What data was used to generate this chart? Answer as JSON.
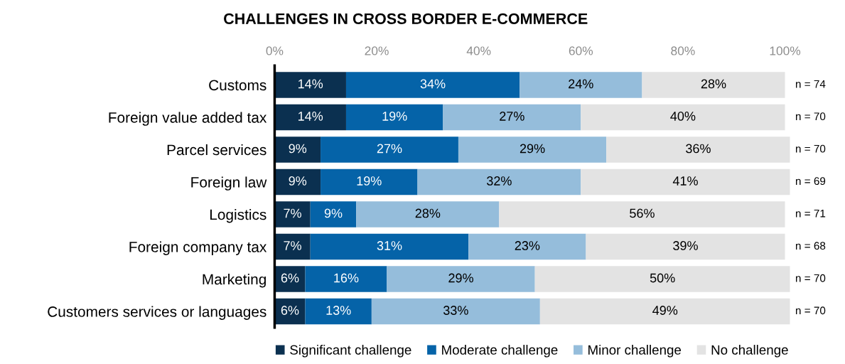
{
  "chart_data": {
    "type": "bar",
    "orientation": "horizontal",
    "stacked": true,
    "title": "CHALLENGES IN CROSS BORDER E-COMMERCE",
    "categories": [
      "Customs",
      "Foreign value added tax",
      "Parcel services",
      "Foreign law",
      "Logistics",
      "Foreign company tax",
      "Marketing",
      "Customers services or languages"
    ],
    "series": [
      {
        "name": "Significant challenge",
        "color": "#0b3050",
        "values": [
          14,
          14,
          9,
          9,
          7,
          7,
          6,
          6
        ],
        "value_labels": [
          "14%",
          "14%",
          "9%",
          "9%",
          "7%",
          "7%",
          "6%",
          "6%"
        ]
      },
      {
        "name": "Moderate challenge",
        "color": "#0563a8",
        "values": [
          34,
          19,
          27,
          19,
          9,
          31,
          16,
          13
        ],
        "value_labels": [
          "34%",
          "19%",
          "27%",
          "19%",
          "9%",
          "31%",
          "16%",
          "13%"
        ]
      },
      {
        "name": "Minor challenge",
        "color": "#95bddb",
        "values": [
          24,
          27,
          29,
          32,
          28,
          23,
          29,
          33
        ],
        "value_labels": [
          "24%",
          "27%",
          "29%",
          "32%",
          "28%",
          "23%",
          "29%",
          "33%"
        ]
      },
      {
        "name": "No challenge",
        "color": "#e3e3e3",
        "values": [
          28,
          40,
          36,
          41,
          56,
          39,
          50,
          49
        ],
        "value_labels": [
          "28%",
          "40%",
          "36%",
          "41%",
          "56%",
          "39%",
          "50%",
          "49%"
        ]
      }
    ],
    "xlim": [
      0,
      101
    ],
    "xticks": [
      {
        "value": 0,
        "label": "0%"
      },
      {
        "value": 20,
        "label": "20%"
      },
      {
        "value": 40,
        "label": "40%"
      },
      {
        "value": 60,
        "label": "60%"
      },
      {
        "value": 80,
        "label": "80%"
      },
      {
        "value": 100,
        "label": "100%"
      }
    ],
    "annotations": [
      "n = 74",
      "n = 70",
      "n = 70",
      "n = 69",
      "n = 71",
      "n = 68",
      "n = 70",
      "n = 70"
    ],
    "grid": false,
    "legend": "bottom"
  }
}
